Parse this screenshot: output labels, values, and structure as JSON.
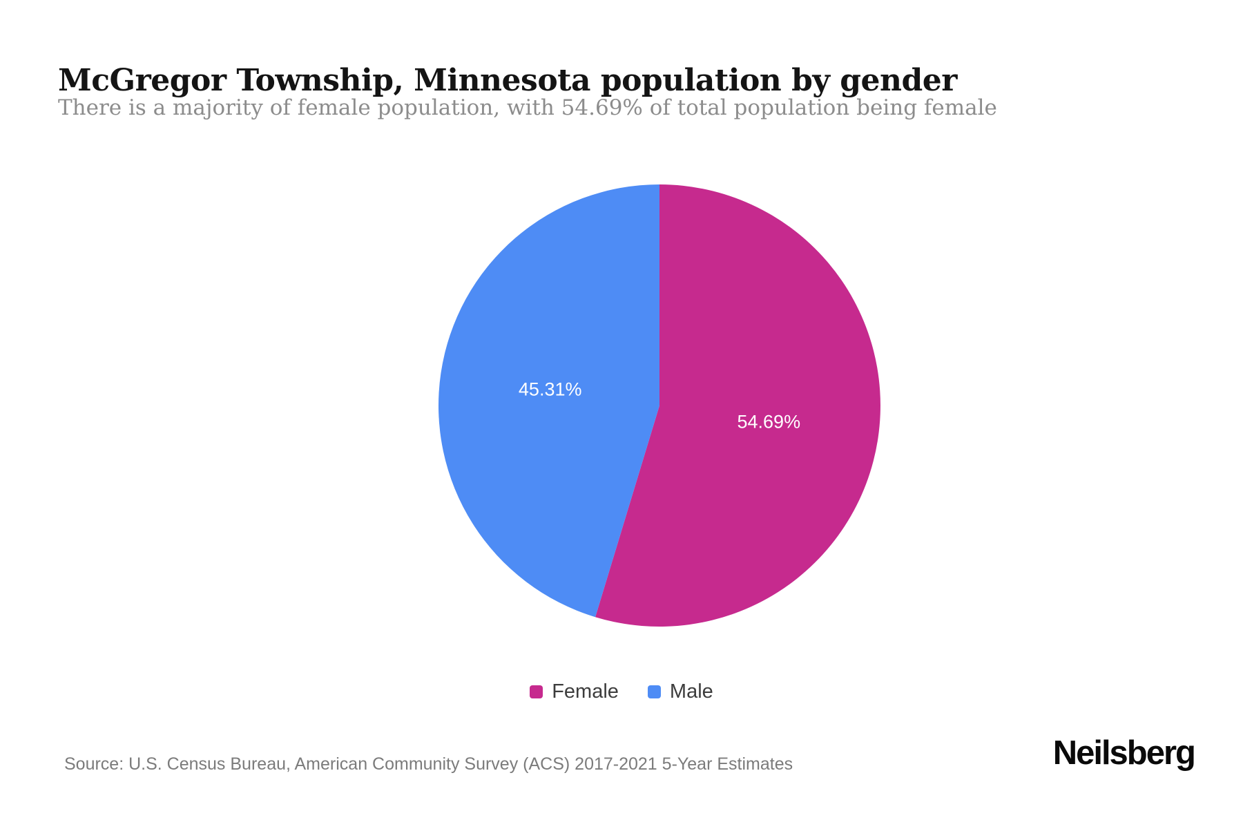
{
  "header": {
    "title": "McGregor Township, Minnesota population by gender",
    "subtitle": "There is a majority of female population, with 54.69% of total population being female"
  },
  "chart_data": {
    "type": "pie",
    "title": "McGregor Township, Minnesota population by gender",
    "slices": [
      {
        "label": "Female",
        "value": 54.69,
        "display": "54.69%",
        "color": "#c62a8e"
      },
      {
        "label": "Male",
        "value": 45.31,
        "display": "45.31%",
        "color": "#4e8cf5"
      }
    ],
    "start_angle_deg": 0,
    "direction": "clockwise",
    "label_color": "#ffffff",
    "legend_position": "bottom"
  },
  "footer": {
    "source": "Source: U.S. Census Bureau, American Community Survey (ACS) 2017-2021 5-Year Estimates",
    "brand": "Neilsberg"
  }
}
